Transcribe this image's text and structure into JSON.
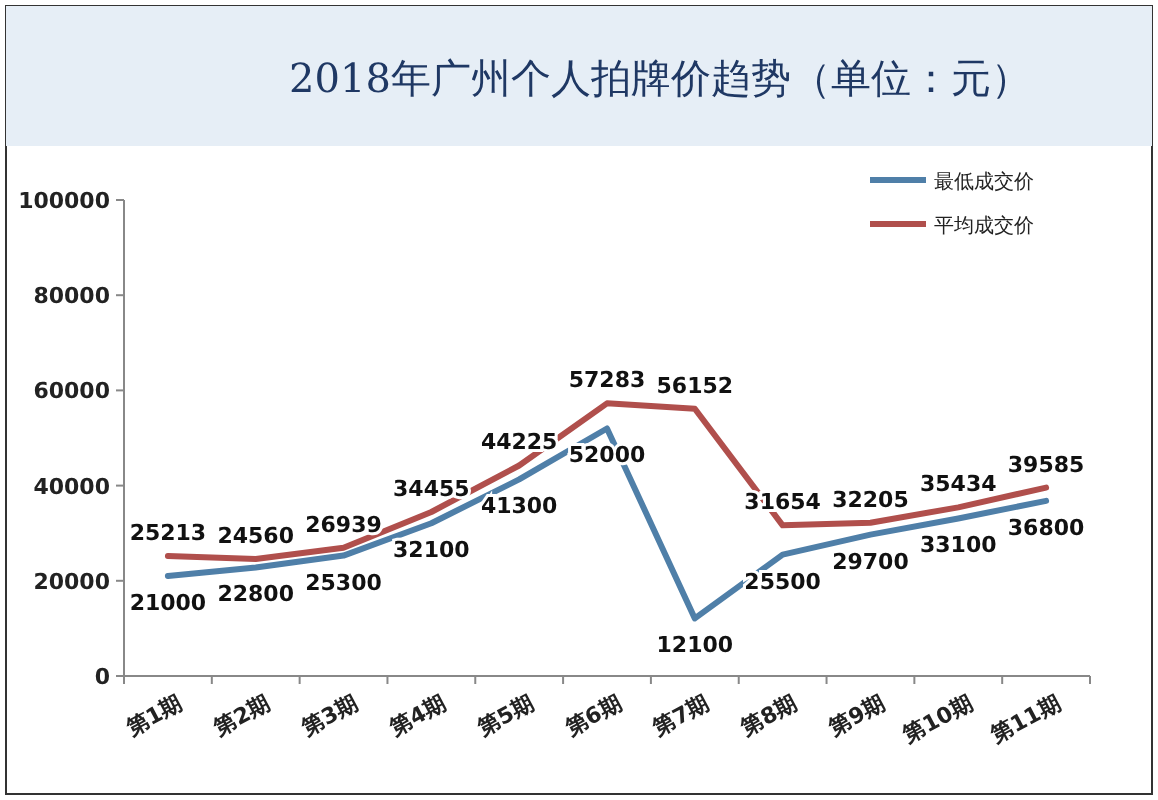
{
  "chart_data": {
    "type": "line",
    "title": "2018年广州个人拍牌价趋势（单位：元）",
    "categories": [
      "第1期",
      "第2期",
      "第3期",
      "第4期",
      "第5期",
      "第6期",
      "第7期",
      "第8期",
      "第9期",
      "第10期",
      "第11期"
    ],
    "series": [
      {
        "name": "最低成交价",
        "color": "#4f7fa8",
        "values": [
          21000,
          22800,
          25300,
          32100,
          41300,
          52000,
          12100,
          25500,
          29700,
          33100,
          36800
        ]
      },
      {
        "name": "平均成交价",
        "color": "#b04f4c",
        "values": [
          25213,
          24560,
          26939,
          34455,
          44225,
          57283,
          56152,
          31654,
          32205,
          35434,
          39585
        ]
      }
    ],
    "ylim": [
      0,
      100000
    ],
    "yticks": [
      0,
      20000,
      40000,
      60000,
      80000,
      100000
    ],
    "data_labels": true,
    "legend": "top right",
    "grid": false,
    "marker": "none",
    "line_style": "solid"
  }
}
